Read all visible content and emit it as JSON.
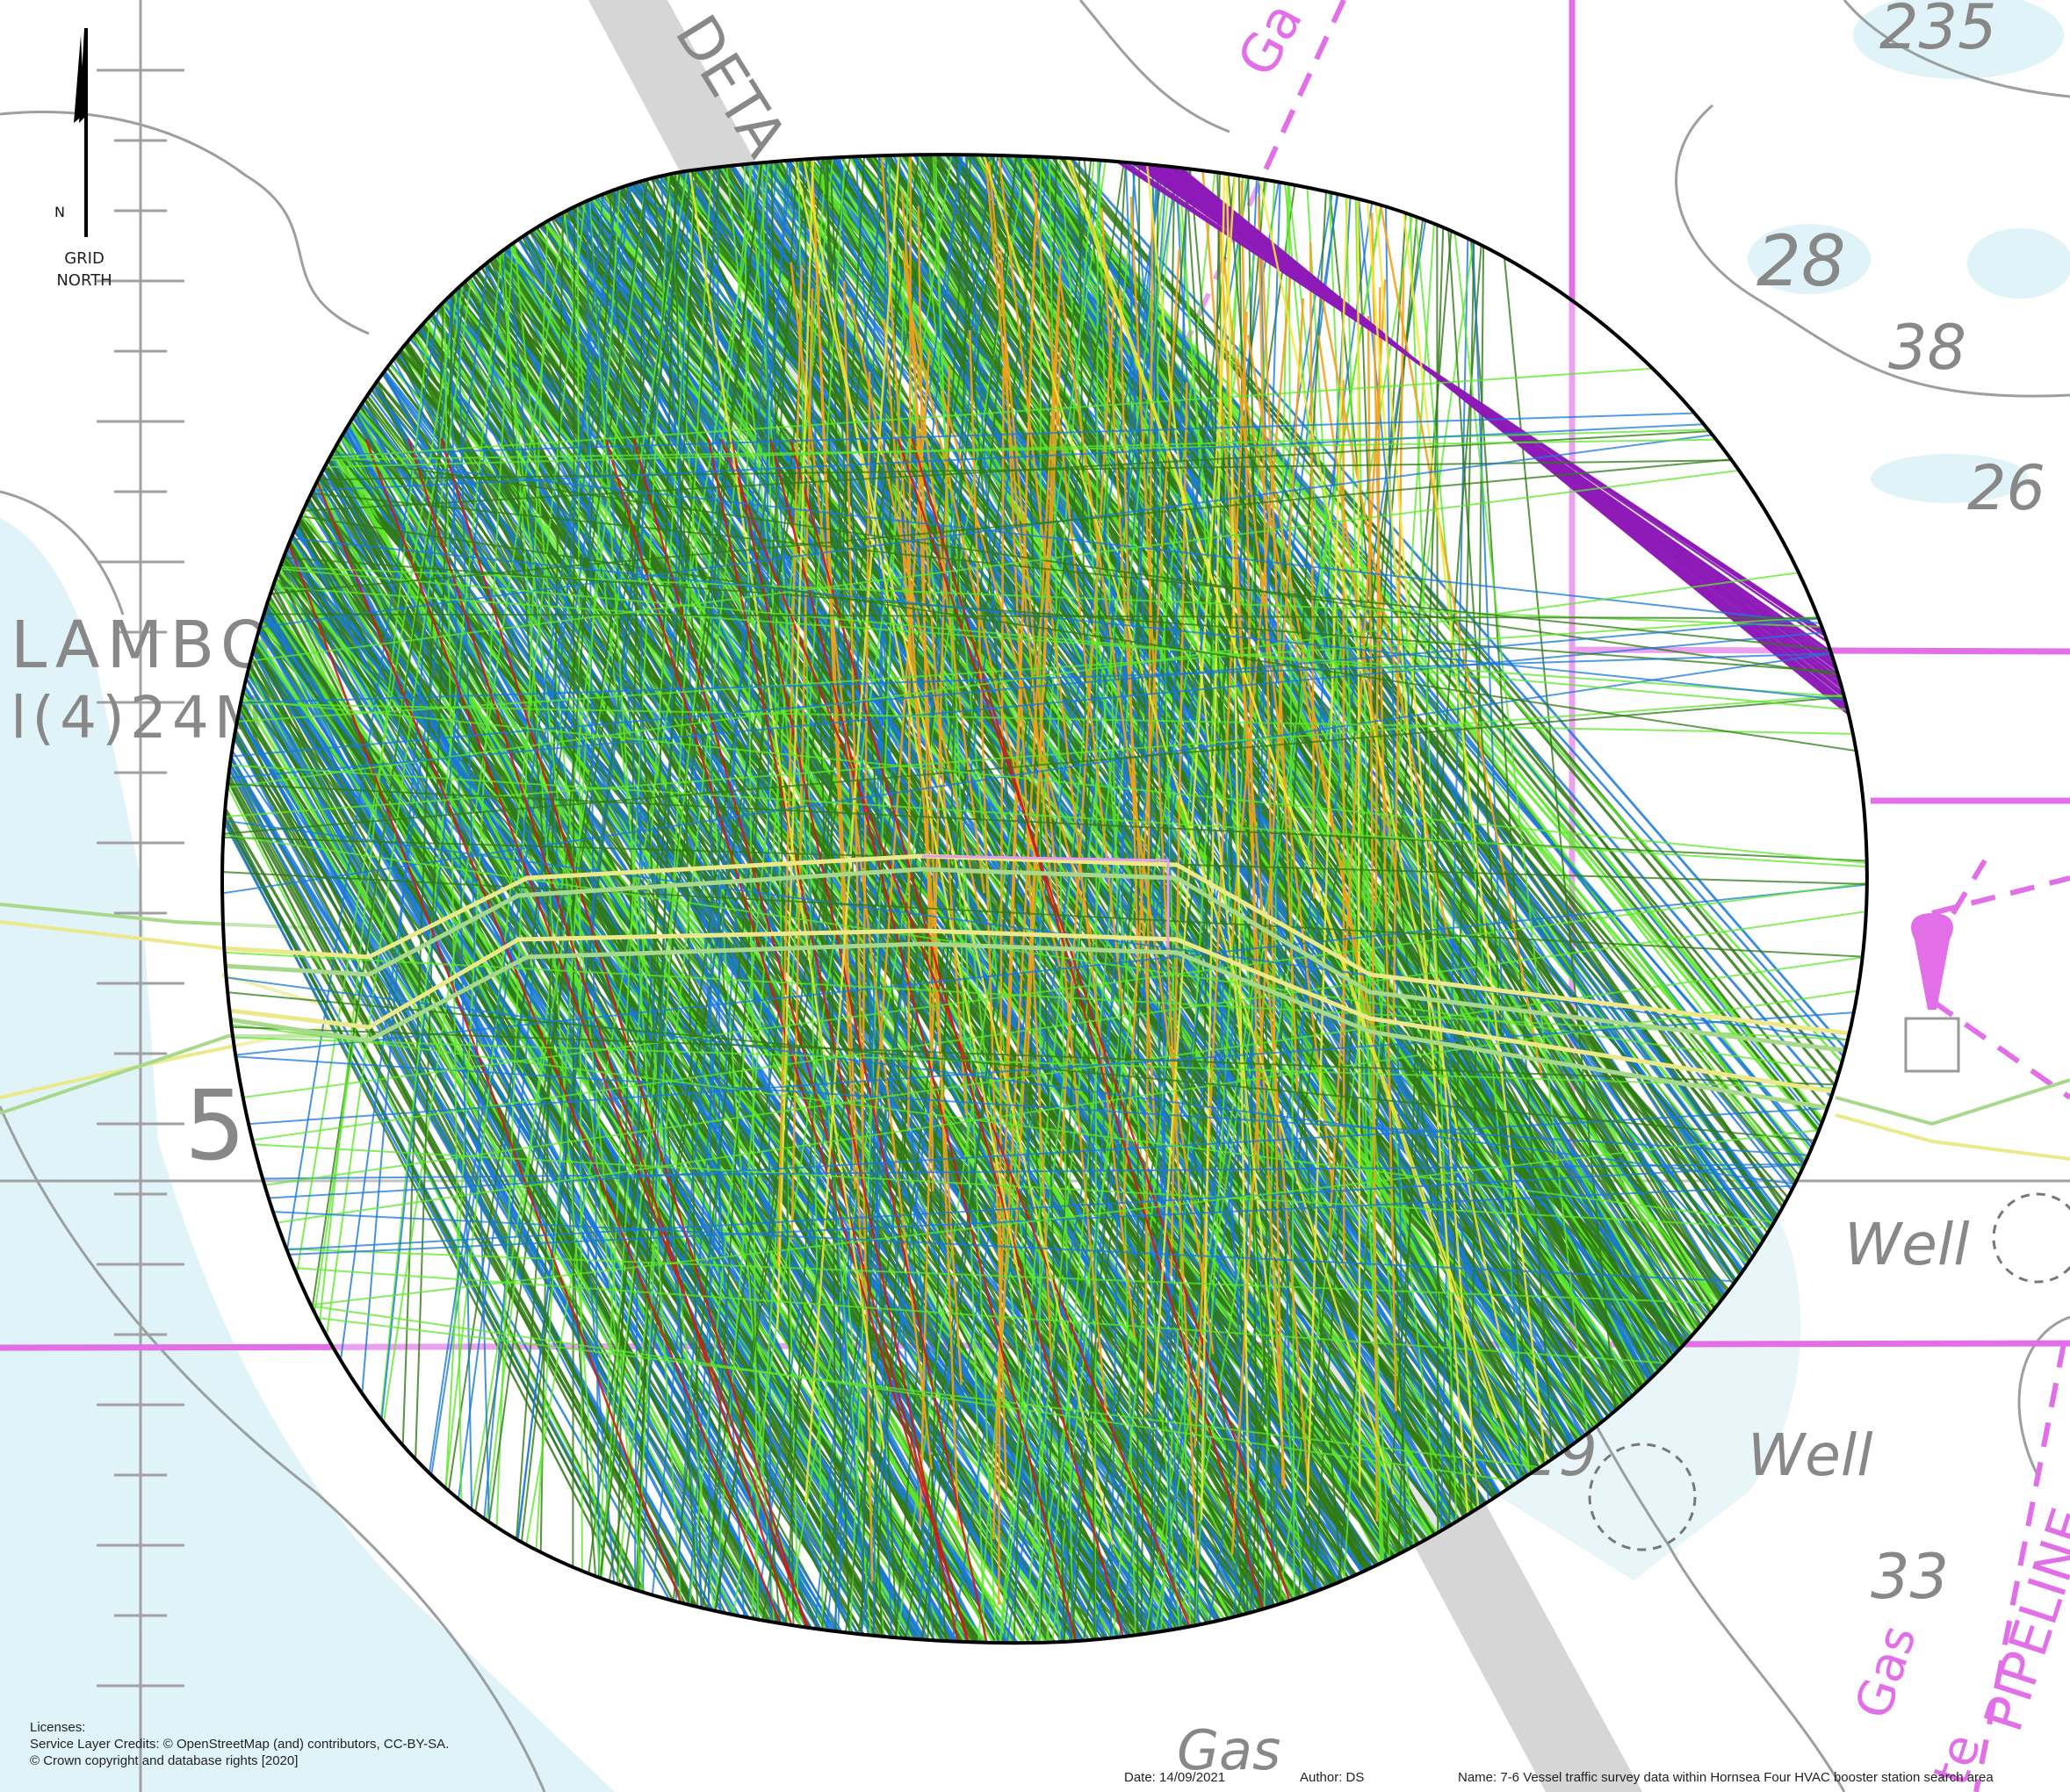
{
  "chart_labels": {
    "place_lambo": "LAMBO",
    "place_lambo_sub": "l(4)24M",
    "depth_5": "5",
    "depth_235": "235",
    "depth_28": "28",
    "depth_38": "38",
    "depth_26": "26",
    "depth_29": "29",
    "depth_33": "33",
    "road_deta": "DETA",
    "well_1": "Well",
    "well_2": "Well",
    "gas_bottom": "Gas",
    "gas_top": "Ga",
    "pipeline_gas": "Gas",
    "pipeline": "PIPELINE",
    "pipeline_prefix": "te"
  },
  "north_arrow": {
    "letter": "N",
    "caption_line1": "GRID",
    "caption_line2": "NORTH"
  },
  "licenses": {
    "title": "Licenses:",
    "line1": "Service Layer Credits: © OpenStreetMap (and) contributors, CC-BY-SA.",
    "line2": "© Crown copyright and database rights [2020]"
  },
  "footer": {
    "date": "Date: 14/09/2021",
    "author": "Author: DS",
    "name": "Name: 7-6 Vessel traffic survey data within Hornsea Four HVAC booster station search area"
  },
  "colors": {
    "sea_shallow": "#dff3f8",
    "land": "#ffffff",
    "contour": "#9aa0a0",
    "magenta": "#e26ee8",
    "route_grey": "#d0d0d0",
    "track_dark_green": "#2f7a14",
    "track_green": "#5ee82a",
    "track_blue": "#1a79d8",
    "track_orange": "#f4a21d",
    "track_purple": "#8e1bb8",
    "track_red": "#c81e1e",
    "track_yellow": "#f2ea3a",
    "cable_yellow": "#ece98a",
    "cable_green": "#a8d88a",
    "boundary": "#000000"
  }
}
